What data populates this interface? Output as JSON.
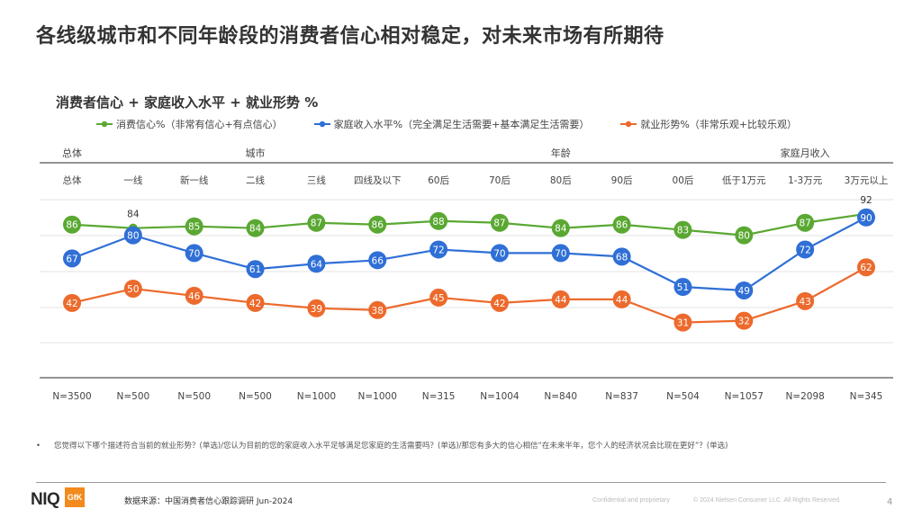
{
  "page": {
    "title": "各线级城市和不同年龄段的消费者信心相对稳定，对未来市场有所期待",
    "note_bullet": "•",
    "note": "您觉得以下哪个描述符合当前的就业形势？(单选)/您认为目前的您的家庭收入水平足够满足您家庭的生活需要吗？(单选)/那您有多大的信心相信“在未来半年，您个人的经济状况会比现在更好”？(单选)",
    "source": "数据来源：中国消费者信心跟踪调研 Jun-2024",
    "confidential": "Confidential and proprietary",
    "copyright": "© 2024 Nielsen Consumer LLC. All Rights Reserved.",
    "page_number": "4",
    "logo_niq": "NIQ",
    "logo_gfk": "GfK"
  },
  "chart_data": {
    "type": "line",
    "title": "消费者信心 + 家庭收入水平 + 就业形势 %",
    "groups": [
      {
        "label": "总体",
        "start": 0,
        "end": 0
      },
      {
        "label": "城市",
        "start": 1,
        "end": 5
      },
      {
        "label": "年龄",
        "start": 6,
        "end": 10
      },
      {
        "label": "家庭月收入",
        "start": 11,
        "end": 13
      }
    ],
    "categories": [
      "总体",
      "一线",
      "新一线",
      "二线",
      "三线",
      "四线及以下",
      "60后",
      "70后",
      "80后",
      "90后",
      "00后",
      "低于1万元",
      "1-3万元",
      "3万元以上"
    ],
    "sample_sizes": [
      "N=3500",
      "N=500",
      "N=500",
      "N=500",
      "N=1000",
      "N=1000",
      "N=315",
      "N=1004",
      "N=840",
      "N=837",
      "N=504",
      "N=1057",
      "N=2098",
      "N=345"
    ],
    "series": [
      {
        "name": "消费信心%（非常有信心+有点信心）",
        "color": "#5aa832",
        "values": [
          86,
          84,
          85,
          84,
          87,
          86,
          88,
          87,
          84,
          86,
          83,
          80,
          87,
          92
        ]
      },
      {
        "name": "家庭收入水平%（完全满足生活需要+基本满足生活需要）",
        "color": "#2f6fd6",
        "values": [
          67,
          80,
          70,
          61,
          64,
          66,
          72,
          70,
          70,
          68,
          51,
          49,
          72,
          90
        ]
      },
      {
        "name": "就业形势%（非常乐观+比较乐观）",
        "color": "#ec6a2c",
        "values": [
          42,
          50,
          46,
          42,
          39,
          38,
          45,
          42,
          44,
          44,
          31,
          32,
          43,
          62
        ]
      }
    ],
    "ylim": [
      0,
      100
    ],
    "grid": true,
    "legend": "top"
  }
}
